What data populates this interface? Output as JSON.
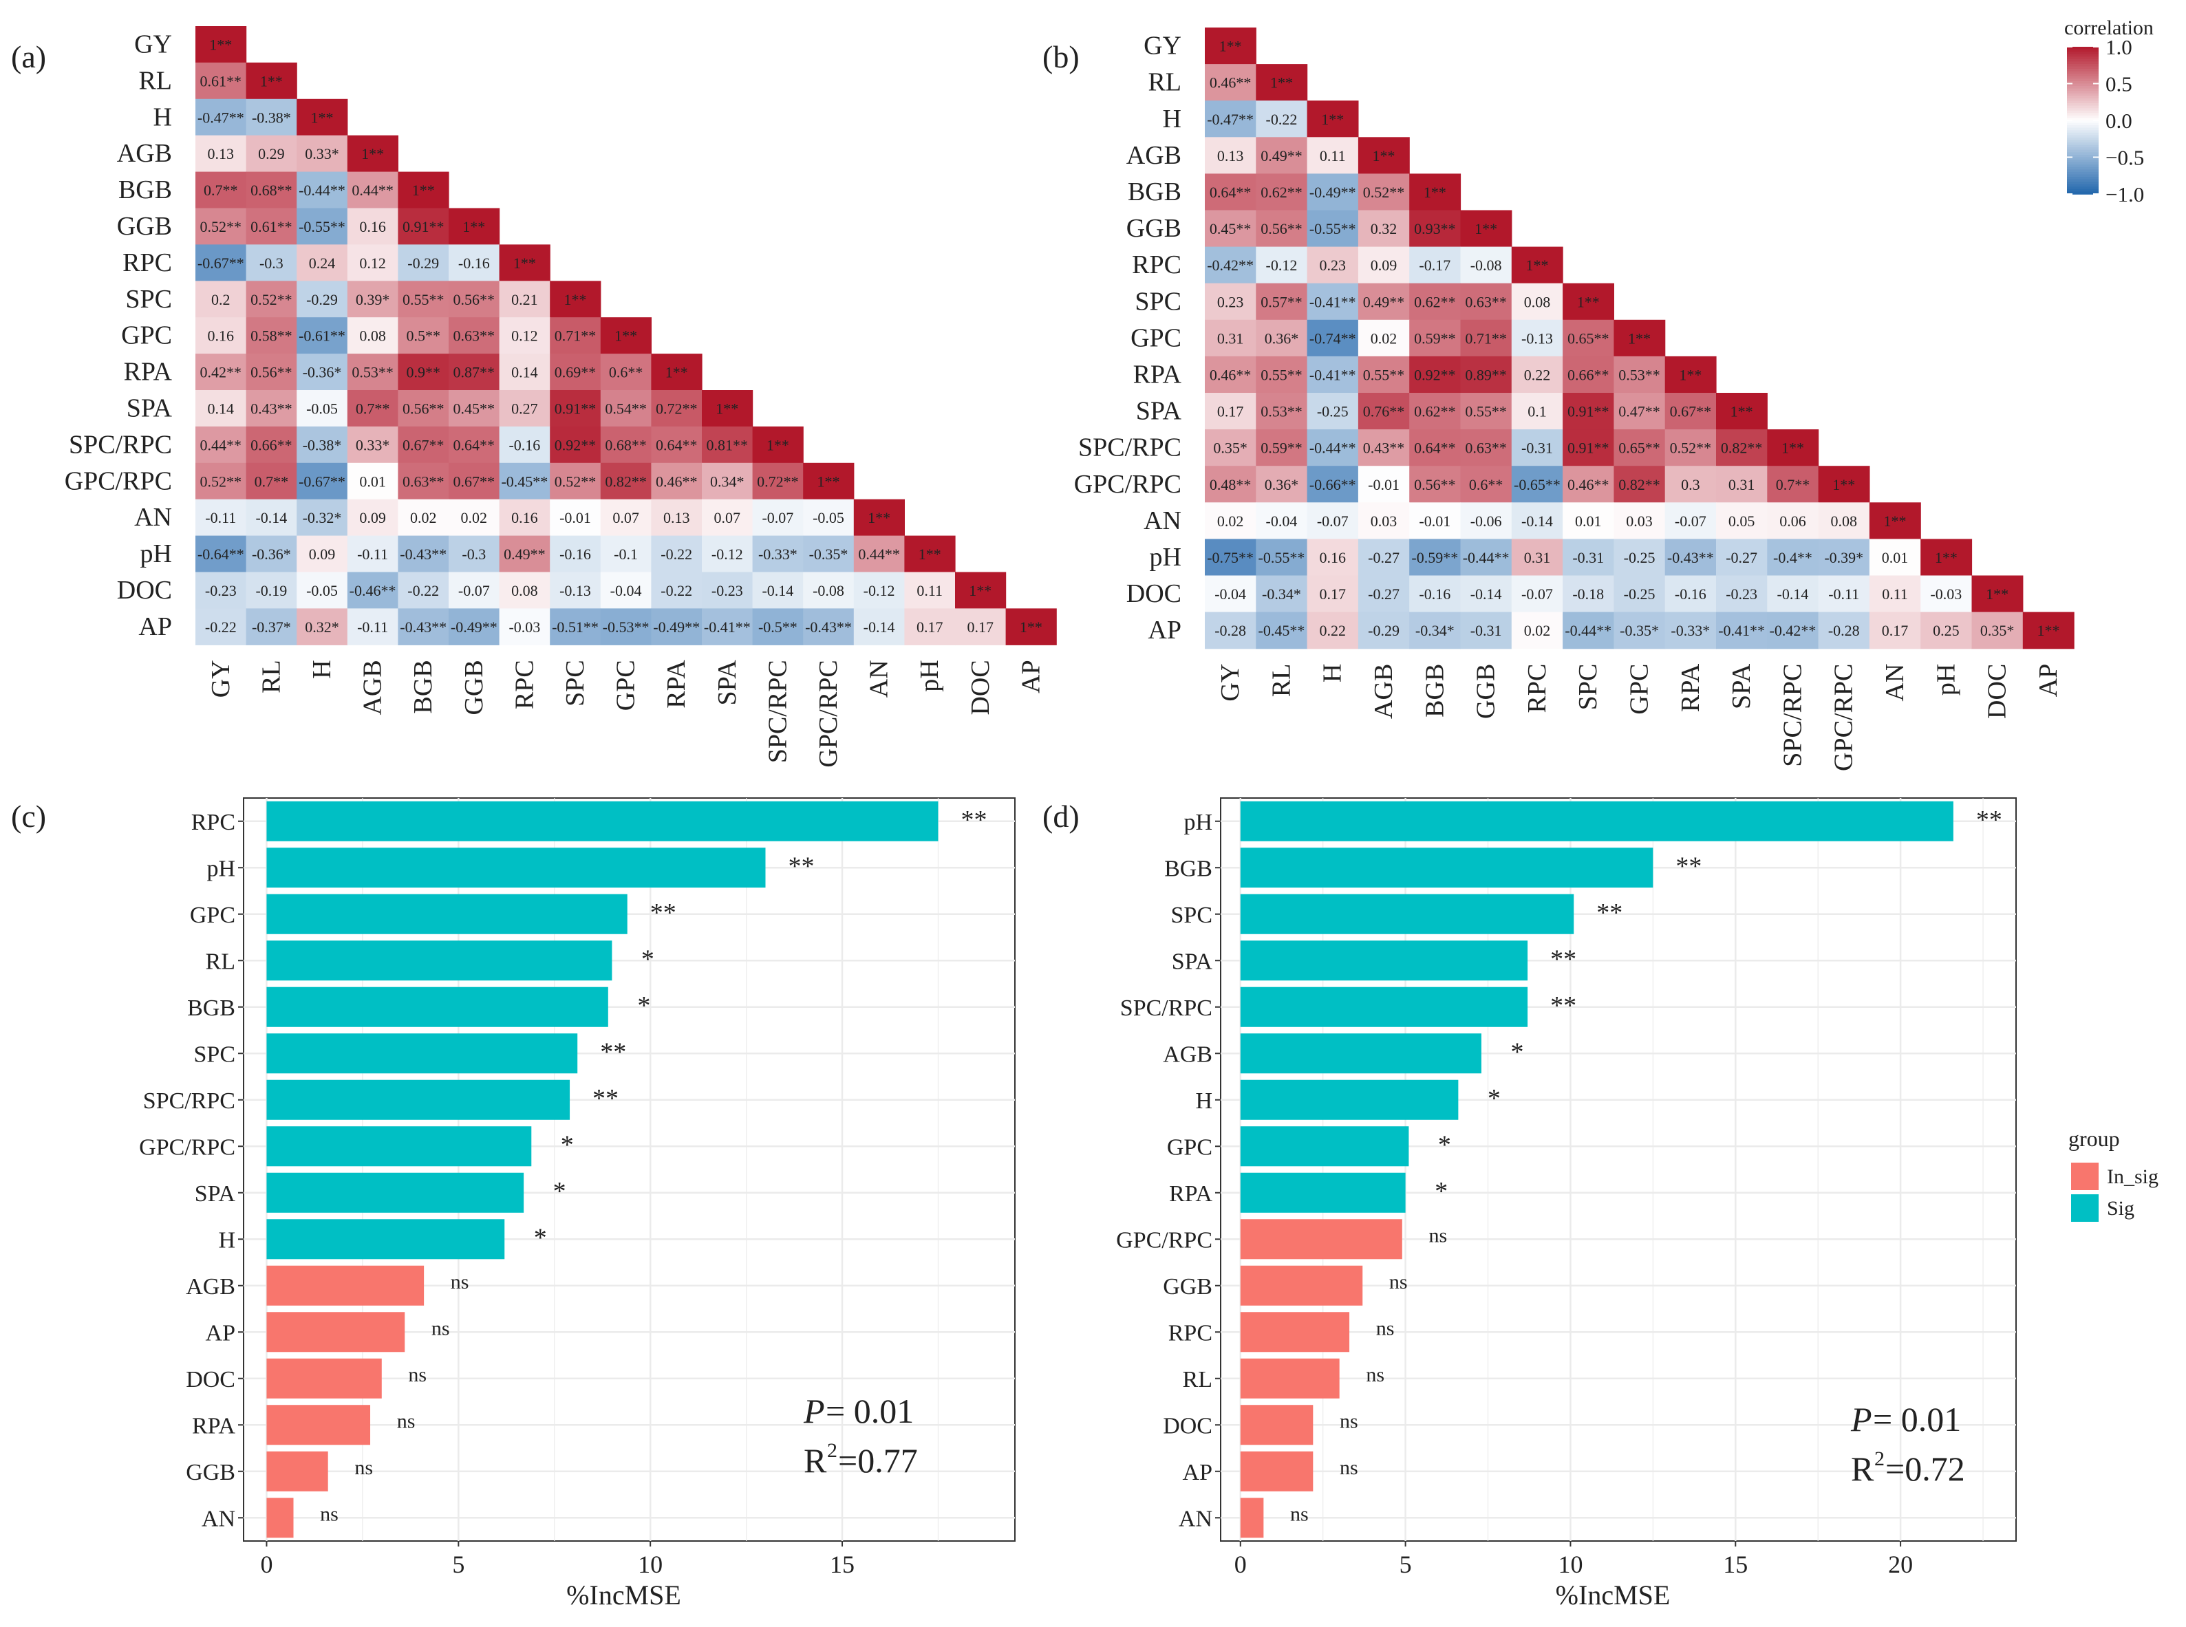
{
  "colors": {
    "high": "#b2182b",
    "mid": "#ffffff",
    "low": "#2166ac",
    "sig": "#00bfc4",
    "insig": "#f8766d",
    "grid": "#ebebeb"
  },
  "chart_data": [
    {
      "type": "heatmap",
      "panel_label": "(a)",
      "variables": [
        "GY",
        "RL",
        "H",
        "AGB",
        "BGB",
        "GGB",
        "RPC",
        "SPC",
        "GPC",
        "RPA",
        "SPA",
        "SPC/RPC",
        "GPC/RPC",
        "AN",
        "pH",
        "DOC",
        "AP"
      ],
      "rows": [
        [
          "1**"
        ],
        [
          "0.61**",
          "1**"
        ],
        [
          "-0.47**",
          "-0.38*",
          "1**"
        ],
        [
          "0.13",
          "0.29",
          "0.33*",
          "1**"
        ],
        [
          "0.7**",
          "0.68**",
          "-0.44**",
          "0.44**",
          "1**"
        ],
        [
          "0.52**",
          "0.61**",
          "-0.55**",
          "0.16",
          "0.91**",
          "1**"
        ],
        [
          "-0.67**",
          "-0.3",
          "0.24",
          "0.12",
          "-0.29",
          "-0.16",
          "1**"
        ],
        [
          "0.2",
          "0.52**",
          "-0.29",
          "0.39*",
          "0.55**",
          "0.56**",
          "0.21",
          "1**"
        ],
        [
          "0.16",
          "0.58**",
          "-0.61**",
          "0.08",
          "0.5**",
          "0.63**",
          "0.12",
          "0.71**",
          "1**"
        ],
        [
          "0.42**",
          "0.56**",
          "-0.36*",
          "0.53**",
          "0.9**",
          "0.87**",
          "0.14",
          "0.69**",
          "0.6**",
          "1**"
        ],
        [
          "0.14",
          "0.43**",
          "-0.05",
          "0.7**",
          "0.56**",
          "0.45**",
          "0.27",
          "0.91**",
          "0.54**",
          "0.72**",
          "1**"
        ],
        [
          "0.44**",
          "0.66**",
          "-0.38*",
          "0.33*",
          "0.67**",
          "0.64**",
          "-0.16",
          "0.92**",
          "0.68**",
          "0.64**",
          "0.81**",
          "1**"
        ],
        [
          "0.52**",
          "0.7**",
          "-0.67**",
          "0.01",
          "0.63**",
          "0.67**",
          "-0.45**",
          "0.52**",
          "0.82**",
          "0.46**",
          "0.34*",
          "0.72**",
          "1**"
        ],
        [
          "-0.11",
          "-0.14",
          "-0.32*",
          "0.09",
          "0.02",
          "0.02",
          "0.16",
          "-0.01",
          "0.07",
          "0.13",
          "0.07",
          "-0.07",
          "-0.05",
          "1**"
        ],
        [
          "-0.64**",
          "-0.36*",
          "0.09",
          "-0.11",
          "-0.43**",
          "-0.3",
          "0.49**",
          "-0.16",
          "-0.1",
          "-0.22",
          "-0.12",
          "-0.33*",
          "-0.35*",
          "0.44**",
          "1**"
        ],
        [
          "-0.23",
          "-0.19",
          "-0.05",
          "-0.46**",
          "-0.22",
          "-0.07",
          "0.08",
          "-0.13",
          "-0.04",
          "-0.22",
          "-0.23",
          "-0.14",
          "-0.08",
          "-0.12",
          "0.11",
          "1**"
        ],
        [
          "-0.22",
          "-0.37*",
          "0.32*",
          "-0.11",
          "-0.43**",
          "-0.49**",
          "-0.03",
          "-0.51**",
          "-0.53**",
          "-0.49**",
          "-0.41**",
          "-0.5**",
          "-0.43**",
          "-0.14",
          "0.17",
          "0.17",
          "1**"
        ]
      ]
    },
    {
      "type": "heatmap",
      "panel_label": "(b)",
      "variables": [
        "GY",
        "RL",
        "H",
        "AGB",
        "BGB",
        "GGB",
        "RPC",
        "SPC",
        "GPC",
        "RPA",
        "SPA",
        "SPC/RPC",
        "GPC/RPC",
        "AN",
        "pH",
        "DOC",
        "AP"
      ],
      "rows": [
        [
          "1**"
        ],
        [
          "0.46**",
          "1**"
        ],
        [
          "-0.47**",
          "-0.22",
          "1**"
        ],
        [
          "0.13",
          "0.49**",
          "0.11",
          "1**"
        ],
        [
          "0.64**",
          "0.62**",
          "-0.49**",
          "0.52**",
          "1**"
        ],
        [
          "0.45**",
          "0.56**",
          "-0.55**",
          "0.32",
          "0.93**",
          "1**"
        ],
        [
          "-0.42**",
          "-0.12",
          "0.23",
          "0.09",
          "-0.17",
          "-0.08",
          "1**"
        ],
        [
          "0.23",
          "0.57**",
          "-0.41**",
          "0.49**",
          "0.62**",
          "0.63**",
          "0.08",
          "1**"
        ],
        [
          "0.31",
          "0.36*",
          "-0.74**",
          "0.02",
          "0.59**",
          "0.71**",
          "-0.13",
          "0.65**",
          "1**"
        ],
        [
          "0.46**",
          "0.55**",
          "-0.41**",
          "0.55**",
          "0.92**",
          "0.89**",
          "0.22",
          "0.66**",
          "0.53**",
          "1**"
        ],
        [
          "0.17",
          "0.53**",
          "-0.25",
          "0.76**",
          "0.62**",
          "0.55**",
          "0.1",
          "0.91**",
          "0.47**",
          "0.67**",
          "1**"
        ],
        [
          "0.35*",
          "0.59**",
          "-0.44**",
          "0.43**",
          "0.64**",
          "0.63**",
          "-0.31",
          "0.91**",
          "0.65**",
          "0.52**",
          "0.82**",
          "1**"
        ],
        [
          "0.48**",
          "0.36*",
          "-0.66**",
          "-0.01",
          "0.56**",
          "0.6**",
          "-0.65**",
          "0.46**",
          "0.82**",
          "0.3",
          "0.31",
          "0.7**",
          "1**"
        ],
        [
          "0.02",
          "-0.04",
          "-0.07",
          "0.03",
          "-0.01",
          "-0.06",
          "-0.14",
          "0.01",
          "0.03",
          "-0.07",
          "0.05",
          "0.06",
          "0.08",
          "1**"
        ],
        [
          "-0.75**",
          "-0.55**",
          "0.16",
          "-0.27",
          "-0.59**",
          "-0.44**",
          "0.31",
          "-0.31",
          "-0.25",
          "-0.43**",
          "-0.27",
          "-0.4**",
          "-0.39*",
          "0.01",
          "1**"
        ],
        [
          "-0.04",
          "-0.34*",
          "0.17",
          "-0.27",
          "-0.16",
          "-0.14",
          "-0.07",
          "-0.18",
          "-0.25",
          "-0.16",
          "-0.23",
          "-0.14",
          "-0.11",
          "0.11",
          "-0.03",
          "1**"
        ],
        [
          "-0.28",
          "-0.45**",
          "0.22",
          "-0.29",
          "-0.34*",
          "-0.31",
          "0.02",
          "-0.44**",
          "-0.35*",
          "-0.33*",
          "-0.41**",
          "-0.42**",
          "-0.28",
          "0.17",
          "0.25",
          "0.35*",
          "1**"
        ]
      ],
      "legend": {
        "title": "correlation",
        "ticks": [
          "1.0",
          "0.5",
          "0.0",
          "−0.5",
          "−1.0"
        ]
      }
    },
    {
      "type": "bar",
      "panel_label": "(c)",
      "orientation": "horizontal",
      "categories": [
        "RPC",
        "pH",
        "GPC",
        "RL",
        "BGB",
        "SPC",
        "SPC/RPC",
        "GPC/RPC",
        "SPA",
        "H",
        "AGB",
        "AP",
        "DOC",
        "RPA",
        "GGB",
        "AN"
      ],
      "values": [
        17.5,
        13.0,
        9.4,
        9.0,
        8.9,
        8.1,
        7.9,
        6.9,
        6.7,
        6.2,
        4.1,
        3.6,
        3.0,
        2.7,
        1.6,
        0.7
      ],
      "significance": [
        "**",
        "**",
        "**",
        "*",
        "*",
        "**",
        "**",
        "*",
        "*",
        "*",
        "ns",
        "ns",
        "ns",
        "ns",
        "ns",
        "ns"
      ],
      "group": [
        "Sig",
        "Sig",
        "Sig",
        "Sig",
        "Sig",
        "Sig",
        "Sig",
        "Sig",
        "Sig",
        "Sig",
        "In_sig",
        "In_sig",
        "In_sig",
        "In_sig",
        "In_sig",
        "In_sig"
      ],
      "xlim": [
        -0.6,
        19.5
      ],
      "xticks": [
        "0",
        "5",
        "10",
        "15"
      ],
      "xlabel": "%IncMSE",
      "p_label": "P",
      "p_value": " = 0.01",
      "r2_label": "R",
      "r2_sup": "2",
      "r2_value": " =0.77"
    },
    {
      "type": "bar",
      "panel_label": "(d)",
      "orientation": "horizontal",
      "categories": [
        "pH",
        "BGB",
        "SPC",
        "SPA",
        "SPC/RPC",
        "AGB",
        "H",
        "GPC",
        "RPA",
        "GPC/RPC",
        "GGB",
        "RPC",
        "RL",
        "DOC",
        "AP",
        "AN"
      ],
      "values": [
        21.6,
        12.5,
        10.1,
        8.7,
        8.7,
        7.3,
        6.6,
        5.1,
        5.0,
        4.9,
        3.7,
        3.3,
        3.0,
        2.2,
        2.2,
        0.7
      ],
      "significance": [
        "**",
        "**",
        "**",
        "**",
        "**",
        "*",
        "*",
        "*",
        "*",
        "ns",
        "ns",
        "ns",
        "ns",
        "ns",
        "ns",
        "ns"
      ],
      "group": [
        "Sig",
        "Sig",
        "Sig",
        "Sig",
        "Sig",
        "Sig",
        "Sig",
        "Sig",
        "Sig",
        "In_sig",
        "In_sig",
        "In_sig",
        "In_sig",
        "In_sig",
        "In_sig",
        "In_sig"
      ],
      "xlim": [
        -0.6,
        23.5
      ],
      "xticks": [
        "0",
        "5",
        "10",
        "15",
        "20"
      ],
      "xlabel": "%IncMSE",
      "p_label": "P",
      "p_value": " = 0.01",
      "r2_label": "R",
      "r2_sup": "2",
      "r2_value": " =0.72"
    }
  ],
  "group_legend": {
    "title": "group",
    "items": [
      {
        "label": "In_sig",
        "color": "#f8766d"
      },
      {
        "label": "Sig",
        "color": "#00bfc4"
      }
    ]
  }
}
